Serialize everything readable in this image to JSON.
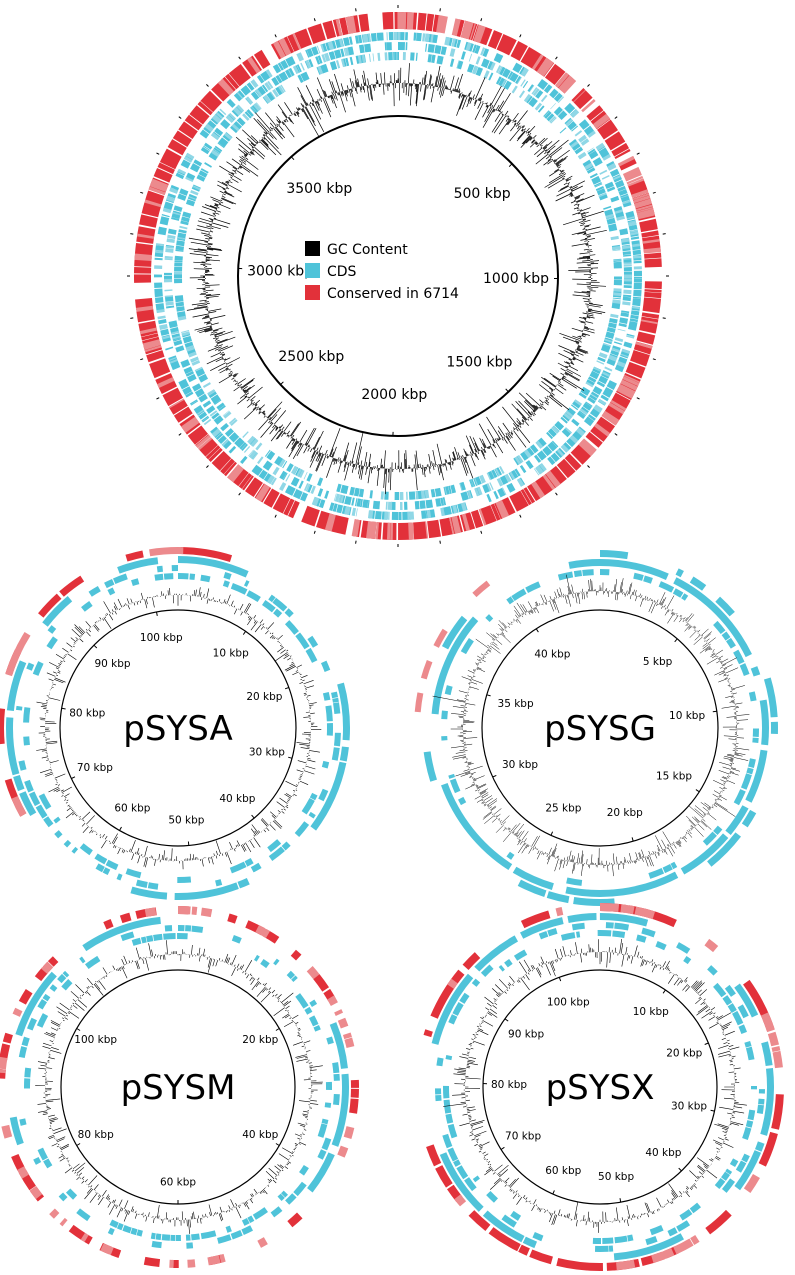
{
  "colors": {
    "gc": "#000000",
    "cds": "#4fc3d9",
    "cds_light": "#8fd7e6",
    "conserved": "#e2313a",
    "conserved_light": "#ec8a8d",
    "background": "#ffffff"
  },
  "legend": [
    {
      "label": "GC Content",
      "color": "#000000"
    },
    {
      "label": "CDS",
      "color": "#4fc3d9"
    },
    {
      "label": "Conserved in 6714",
      "color": "#e2313a"
    }
  ],
  "maps": [
    {
      "id": "chromosome",
      "name": "",
      "total_kbp": 3960,
      "labels": [
        {
          "text": "3500 kbp",
          "kbp": 3500
        },
        {
          "text": "500 kbp",
          "kbp": 500
        },
        {
          "text": "3000 kbp",
          "kbp": 3000
        },
        {
          "text": "1000 kbp",
          "kbp": 1000
        },
        {
          "text": "2500 kbp",
          "kbp": 2500
        },
        {
          "text": "2000 kbp",
          "kbp": 2000
        },
        {
          "text": "1500 kbp",
          "kbp": 1500
        }
      ]
    },
    {
      "id": "pSYSA",
      "name": "pSYSA",
      "total_kbp": 103,
      "labels": [
        {
          "text": "100 kbp",
          "kbp": 100
        },
        {
          "text": "10 kbp",
          "kbp": 10
        },
        {
          "text": "90 kbp",
          "kbp": 90
        },
        {
          "text": "20 kbp",
          "kbp": 20
        },
        {
          "text": "80 kbp",
          "kbp": 80
        },
        {
          "text": "30 kbp",
          "kbp": 30
        },
        {
          "text": "70 kbp",
          "kbp": 70
        },
        {
          "text": "40 kbp",
          "kbp": 40
        },
        {
          "text": "60 kbp",
          "kbp": 60
        },
        {
          "text": "50 kbp",
          "kbp": 50
        }
      ]
    },
    {
      "id": "pSYSG",
      "name": "pSYSG",
      "total_kbp": 44,
      "labels": [
        {
          "text": "40 kbp",
          "kbp": 40
        },
        {
          "text": "5 kbp",
          "kbp": 5
        },
        {
          "text": "35 kbp",
          "kbp": 35
        },
        {
          "text": "10 kbp",
          "kbp": 10
        },
        {
          "text": "30 kbp",
          "kbp": 30
        },
        {
          "text": "15 kbp",
          "kbp": 15
        },
        {
          "text": "25 kbp",
          "kbp": 25
        },
        {
          "text": "20 kbp",
          "kbp": 20
        }
      ]
    },
    {
      "id": "pSYSM",
      "name": "pSYSM",
      "total_kbp": 120,
      "labels": [
        {
          "text": "100 kbp",
          "kbp": 100
        },
        {
          "text": "20 kbp",
          "kbp": 20
        },
        {
          "text": "80 kbp",
          "kbp": 80
        },
        {
          "text": "40 kbp",
          "kbp": 40
        },
        {
          "text": "60 kbp",
          "kbp": 60
        }
      ]
    },
    {
      "id": "pSYSX",
      "name": "pSYSX",
      "total_kbp": 106,
      "labels": [
        {
          "text": "100 kbp",
          "kbp": 100
        },
        {
          "text": "10 kbp",
          "kbp": 10
        },
        {
          "text": "90 kbp",
          "kbp": 90
        },
        {
          "text": "20 kbp",
          "kbp": 20
        },
        {
          "text": "80 kbp",
          "kbp": 80
        },
        {
          "text": "30 kbp",
          "kbp": 30
        },
        {
          "text": "70 kbp",
          "kbp": 70
        },
        {
          "text": "40 kbp",
          "kbp": 40
        },
        {
          "text": "60 kbp",
          "kbp": 60
        },
        {
          "text": "50 kbp",
          "kbp": 50
        }
      ]
    }
  ]
}
